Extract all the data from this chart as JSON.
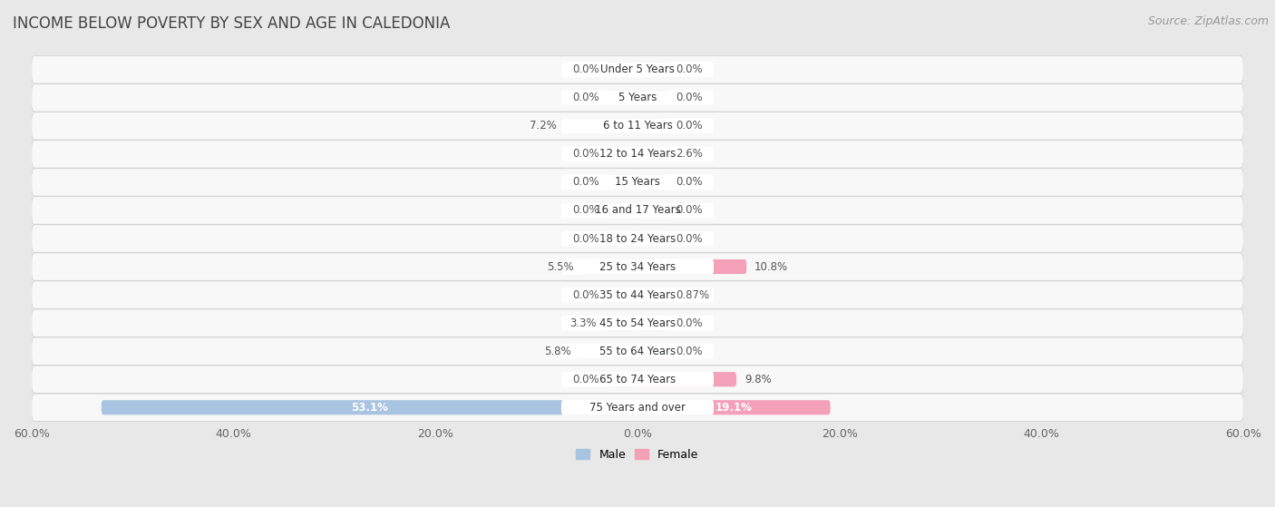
{
  "title": "INCOME BELOW POVERTY BY SEX AND AGE IN CALEDONIA",
  "source": "Source: ZipAtlas.com",
  "categories": [
    "Under 5 Years",
    "5 Years",
    "6 to 11 Years",
    "12 to 14 Years",
    "15 Years",
    "16 and 17 Years",
    "18 to 24 Years",
    "25 to 34 Years",
    "35 to 44 Years",
    "45 to 54 Years",
    "55 to 64 Years",
    "65 to 74 Years",
    "75 Years and over"
  ],
  "male": [
    0.0,
    0.0,
    7.2,
    0.0,
    0.0,
    0.0,
    0.0,
    5.5,
    0.0,
    3.3,
    5.8,
    0.0,
    53.1
  ],
  "female": [
    0.0,
    0.0,
    0.0,
    2.6,
    0.0,
    0.0,
    0.0,
    10.8,
    0.87,
    0.0,
    0.0,
    9.8,
    19.1
  ],
  "male_color": "#a8c4e0",
  "female_color": "#f4a0b8",
  "male_label": "Male",
  "female_label": "Female",
  "xlim": 60.0,
  "background_color": "#e8e8e8",
  "row_bg_color": "#f8f8f8",
  "title_fontsize": 12,
  "source_fontsize": 9,
  "label_fontsize": 8.5,
  "axis_fontsize": 9,
  "min_bar_display": 3.0
}
